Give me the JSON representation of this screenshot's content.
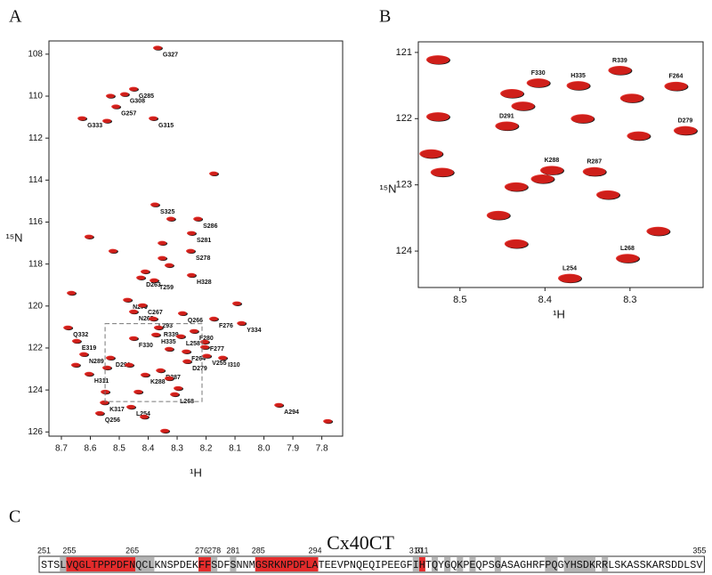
{
  "chart_data": [
    {
      "type": "scatter",
      "panel": "A",
      "xlabel": "¹H",
      "ylabel": "¹⁵N",
      "xlim": [
        8.743,
        7.728
      ],
      "ylim": [
        126.2,
        107.37
      ],
      "xticks": [
        8.7,
        8.6,
        8.5,
        8.4,
        8.3,
        8.2,
        8.1,
        {
          "value": 8,
          "label": "8.0"
        },
        7.9,
        7.8
      ],
      "yticks": [
        108,
        110,
        112,
        114,
        116,
        118,
        120,
        122,
        124,
        126
      ],
      "marker_color": "#e3201b",
      "outline_color": "#1a1a1a",
      "x": [
        8.368,
        8.451,
        8.482,
        8.512,
        8.383,
        8.629,
        8.377,
        8.229,
        8.251,
        8.254,
        8.251,
        8.38,
        8.426,
        8.472,
        8.42,
        8.451,
        8.383,
        8.282,
        8.365,
        8.174,
        8.078,
        8.678,
        8.242,
        8.288,
        8.374,
        8.451,
        8.648,
        8.205,
        8.269,
        8.198,
        8.623,
        8.531,
        8.143,
        8.266,
        8.358,
        8.411,
        8.605,
        8.309,
        8.552,
        8.46,
        7.949,
        8.568,
        8.666,
        8.605,
        8.522,
        8.352,
        8.322,
        8.174,
        8.531,
        8.543,
        8.411,
        8.352,
        8.328,
        8.094,
        7.78,
        8.343,
        8.414,
        8.297,
        8.549,
        8.435,
        8.543,
        8.466,
        8.328,
        8.205,
        8.328,
        8.651
      ],
      "y": [
        107.7,
        109.66,
        109.91,
        110.5,
        111.06,
        111.06,
        115.17,
        115.85,
        116.53,
        117.38,
        118.53,
        118.78,
        118.65,
        119.71,
        119.97,
        120.27,
        120.61,
        120.35,
        121.03,
        120.61,
        120.82,
        121.03,
        121.2,
        121.45,
        121.37,
        121.54,
        121.67,
        121.71,
        122.17,
        122.38,
        122.3,
        122.47,
        122.47,
        122.64,
        123.07,
        123.28,
        123.24,
        124.21,
        124.6,
        124.81,
        124.72,
        125.11,
        119.38,
        116.7,
        117.38,
        117.0,
        115.85,
        113.69,
        109.99,
        111.18,
        118.36,
        117.72,
        118.06,
        119.88,
        125.49,
        125.95,
        125.28,
        123.92,
        124.09,
        124.09,
        122.94,
        122.81,
        123.45,
        121.96,
        122.05,
        122.81
      ],
      "point_labels": [
        "G327",
        "G285",
        "G308",
        "G257",
        "G315",
        "G333",
        "S325",
        "S286",
        "S281",
        "S278",
        "H328",
        "T259",
        "D263",
        "N270",
        "C267",
        "N265",
        "L293",
        "Q266",
        "R339",
        "F276",
        "Y334",
        "Q332",
        "F280",
        "L258",
        "H335",
        "F330",
        "E319",
        "F277",
        "F264",
        "V255",
        "N289",
        "D291",
        "I310",
        "D279",
        "R287",
        "K288",
        "H311",
        "L268",
        "K317",
        "L254",
        "A294",
        "Q256",
        null,
        null,
        null,
        null,
        null,
        null,
        null,
        null,
        null,
        null,
        null,
        null,
        null,
        null,
        null,
        null,
        null,
        null,
        null,
        null,
        null,
        null,
        null,
        null
      ]
    },
    {
      "type": "scatter",
      "panel": "B",
      "xlabel": "¹H",
      "ylabel": "¹⁵N",
      "xlim": [
        8.549,
        8.214
      ],
      "ylim": [
        124.55,
        120.84
      ],
      "xticks": [
        8.5,
        8.4,
        8.3
      ],
      "yticks": [
        121,
        122,
        123,
        124
      ],
      "marker_color": "#e3201b",
      "outline_color": "#1a1a1a",
      "x": [
        8.408,
        8.312,
        8.361,
        8.246,
        8.445,
        8.235,
        8.392,
        8.342,
        8.371,
        8.303,
        8.526,
        8.439,
        8.426,
        8.356,
        8.298,
        8.29,
        8.526,
        8.534,
        8.521,
        8.434,
        8.403,
        8.326,
        8.455,
        8.434,
        8.267
      ],
      "y": [
        121.46,
        121.27,
        121.5,
        121.51,
        122.11,
        122.18,
        122.78,
        122.8,
        124.41,
        124.11,
        121.11,
        121.62,
        121.81,
        122.0,
        121.69,
        122.26,
        121.97,
        122.53,
        122.81,
        123.03,
        122.91,
        123.15,
        123.46,
        123.89,
        123.7
      ],
      "point_labels": [
        "F330",
        "R339",
        "H335",
        "F264",
        "D291",
        "D279",
        "K288",
        "R287",
        "L254",
        "L268",
        null,
        null,
        null,
        null,
        null,
        null,
        null,
        null,
        null,
        null,
        null,
        null,
        null,
        null,
        null
      ]
    }
  ],
  "sequence_panel": {
    "panel": "C",
    "title": "Cx40CT",
    "residues": "STSLVQGLTPPPDFNQCLKNSPDEKFFSDFSNNMGSRKNPDPLATEEVPNQEQIPEEGFIHTQYGQKPEQPSGASAGHRFPQGYHSDKRRLSKASSKARSDDLSV",
    "first": 251,
    "last": 355,
    "markers": [
      251,
      255,
      265,
      276,
      278,
      281,
      285,
      294,
      310,
      311,
      355
    ],
    "highlights": [
      {
        "color": "#e32b2b",
        "ranges": [
          [
            255,
            265
          ],
          [
            276,
            277
          ],
          [
            285,
            294
          ],
          [
            311,
            311
          ]
        ]
      },
      {
        "color": "#b4b4b4",
        "ranges": [
          [
            254,
            254
          ],
          [
            266,
            268
          ],
          [
            278,
            278
          ],
          [
            281,
            281
          ],
          [
            310,
            310
          ],
          [
            313,
            313
          ],
          [
            315,
            315
          ],
          [
            317,
            317
          ],
          [
            319,
            319
          ],
          [
            323,
            323
          ],
          [
            331,
            332
          ],
          [
            334,
            338
          ],
          [
            340,
            340
          ]
        ]
      }
    ]
  }
}
